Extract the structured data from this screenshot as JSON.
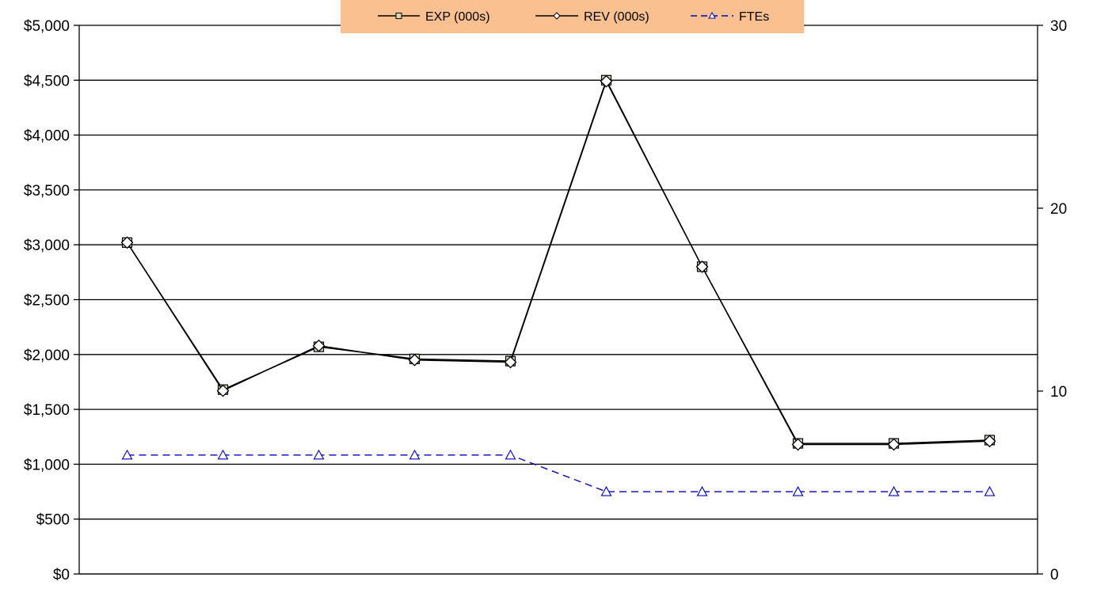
{
  "chart_data": {
    "type": "line",
    "x": [
      1,
      2,
      3,
      4,
      5,
      6,
      7,
      8,
      9,
      10
    ],
    "y_left": {
      "ylim": [
        0,
        5000
      ],
      "ticks": [
        0,
        500,
        1000,
        1500,
        2000,
        2500,
        3000,
        3500,
        4000,
        4500,
        5000
      ],
      "tick_labels": [
        "$0",
        "$500",
        "$1,000",
        "$1,500",
        "$2,000",
        "$2,500",
        "$3,000",
        "$3,500",
        "$4,000",
        "$4,500",
        "$5,000"
      ]
    },
    "y_right": {
      "ylim": [
        0,
        30
      ],
      "ticks": [
        0,
        10,
        20,
        30
      ],
      "tick_labels": [
        "0",
        "10",
        "20",
        "30"
      ]
    },
    "grid": true,
    "legend_position": "top-center",
    "legend_background": "#fac090",
    "series": [
      {
        "name": "EXP (000s)",
        "axis": "left",
        "marker": "square",
        "color": "#000000",
        "marker_fill": "#d8d8b4",
        "dash": false,
        "values": [
          3020,
          1680,
          2070,
          1960,
          1940,
          4500,
          2800,
          1190,
          1190,
          1220
        ]
      },
      {
        "name": "REV (000s)",
        "axis": "left",
        "marker": "diamond",
        "color": "#000000",
        "marker_fill": "#ffffff",
        "dash": false,
        "values": [
          3020,
          1670,
          2080,
          1950,
          1930,
          4490,
          2800,
          1180,
          1180,
          1210
        ]
      },
      {
        "name": "FTEs",
        "axis": "right",
        "marker": "triangle",
        "color": "#0000cc",
        "marker_fill": "#ffffff",
        "dash": true,
        "values": [
          6.5,
          6.5,
          6.5,
          6.5,
          6.5,
          4.5,
          4.5,
          4.5,
          4.5,
          4.5
        ]
      }
    ]
  }
}
